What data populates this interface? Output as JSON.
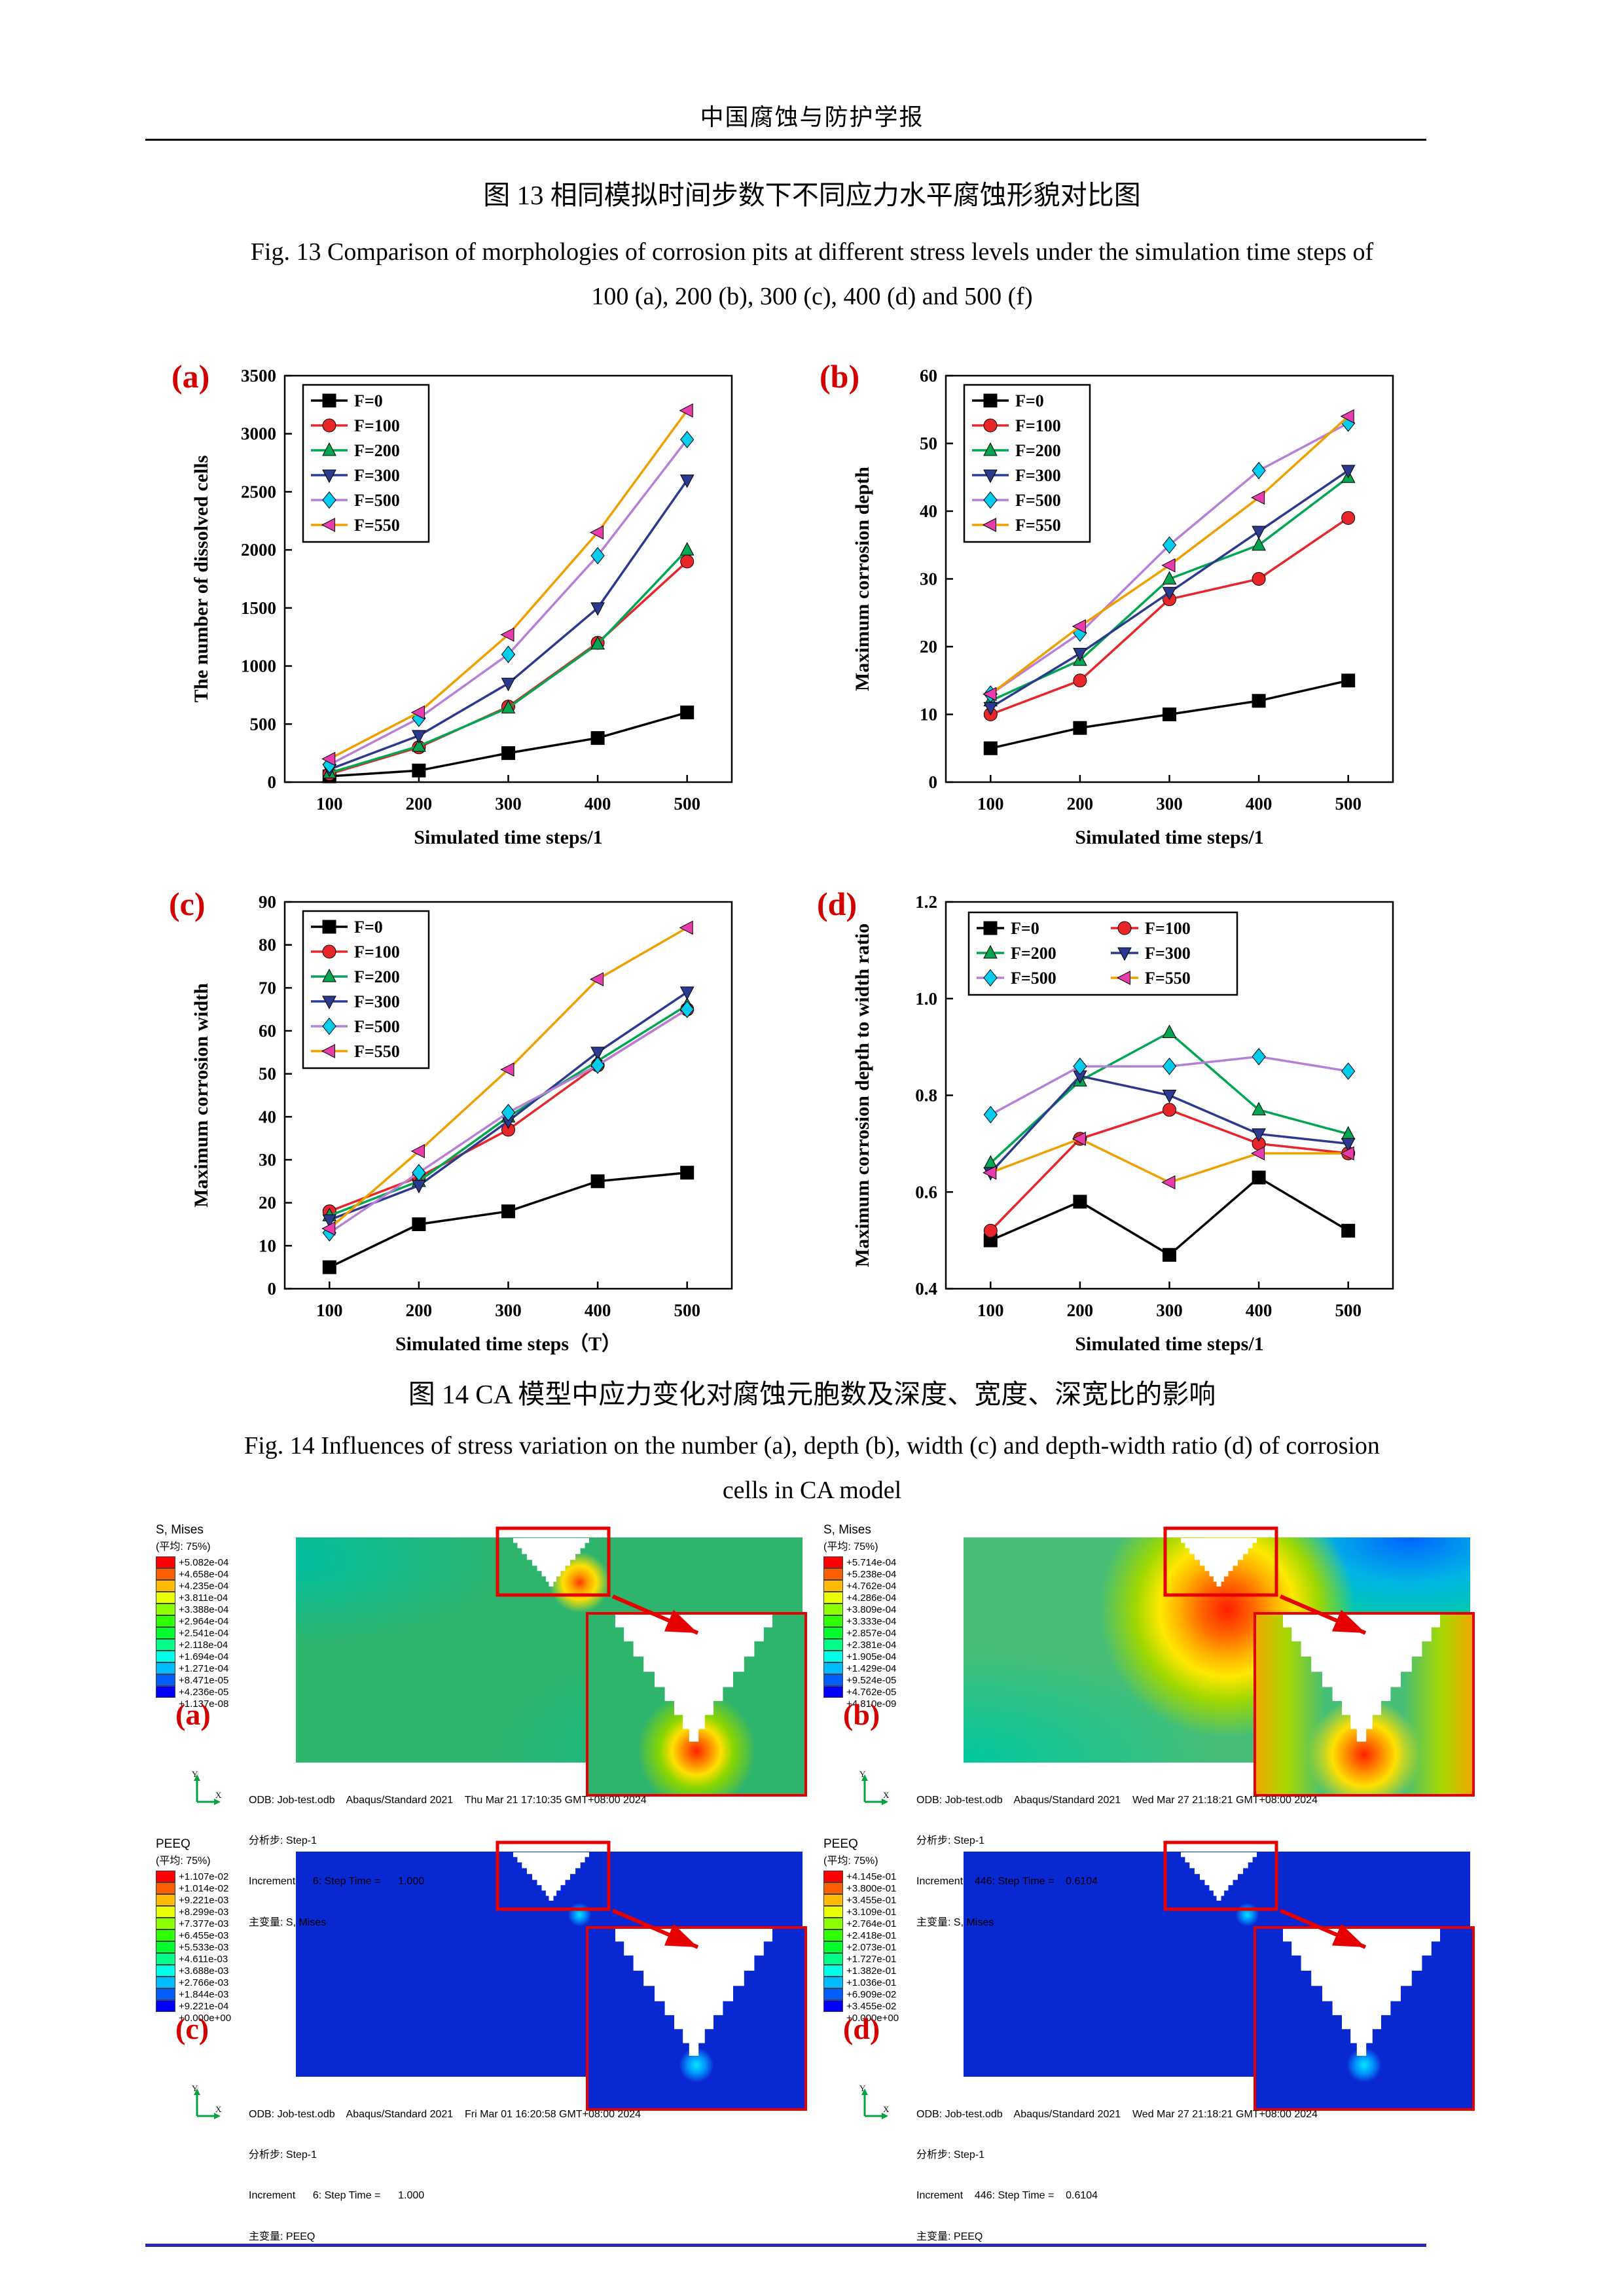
{
  "page": {
    "journal_header": "中国腐蚀与防护学报",
    "fig13_caption_zh": "图 13  相同模拟时间步数下不同应力水平腐蚀形貌对比图",
    "fig13_caption_en_line1": "Fig. 13 Comparison of morphologies of corrosion pits at different stress levels under the simulation time steps of",
    "fig13_caption_en_line2": "100 (a), 200 (b), 300 (c), 400 (d) and 500 (f)",
    "fig14_caption_zh": "图 14 CA 模型中应力变化对腐蚀元胞数及深度、宽度、深宽比的影响",
    "fig14_caption_en_line1": "Fig. 14 Influences of stress variation on the number (a), depth (b), width (c) and depth-width ratio (d) of corrosion",
    "fig14_caption_en_line2": "cells in CA model"
  },
  "chart_panel_labels": {
    "a": "(a)",
    "b": "(b)",
    "c": "(c)",
    "d": "(d)"
  },
  "chart_data": [
    {
      "id": "a",
      "type": "line",
      "title": "",
      "xlabel": "Simulated time steps/1",
      "ylabel": "The number of dissolved cells",
      "x": [
        100,
        200,
        300,
        400,
        500
      ],
      "xlim": [
        50,
        550
      ],
      "ylim": [
        0,
        3500
      ],
      "ytick_step": 500,
      "ytick_decimals": 0,
      "legend_position": "top-left",
      "legend_columns": 1,
      "series": [
        {
          "name": "F=0",
          "marker": "square",
          "color": "#000000",
          "marker_color": "#000000",
          "values": [
            50,
            100,
            250,
            380,
            600
          ]
        },
        {
          "name": "F=100",
          "marker": "circle",
          "color": "#e8262a",
          "marker_color": "#e8262a",
          "values": [
            70,
            300,
            650,
            1200,
            1900
          ]
        },
        {
          "name": "F=200",
          "marker": "triangle-up",
          "color": "#00a651",
          "marker_color": "#00a651",
          "values": [
            80,
            310,
            640,
            1190,
            2000
          ]
        },
        {
          "name": "F=300",
          "marker": "triangle-down",
          "color": "#2b3a8f",
          "marker_color": "#2b3a8f",
          "values": [
            110,
            400,
            850,
            1500,
            2600
          ]
        },
        {
          "name": "F=500",
          "marker": "diamond",
          "color": "#b77fd6",
          "marker_color": "#00cdee",
          "values": [
            150,
            550,
            1100,
            1950,
            2950
          ]
        },
        {
          "name": "F=550",
          "marker": "triangle-left",
          "color": "#efa000",
          "marker_color": "#e93cac",
          "values": [
            200,
            600,
            1270,
            2150,
            3200
          ]
        }
      ]
    },
    {
      "id": "b",
      "type": "line",
      "title": "",
      "xlabel": "Simulated time steps/1",
      "ylabel": "Maximum corrosion depth",
      "x": [
        100,
        200,
        300,
        400,
        500
      ],
      "xlim": [
        50,
        550
      ],
      "ylim": [
        0,
        60
      ],
      "ytick_step": 10,
      "ytick_decimals": 0,
      "legend_position": "top-left",
      "legend_columns": 1,
      "series": [
        {
          "name": "F=0",
          "marker": "square",
          "color": "#000000",
          "marker_color": "#000000",
          "values": [
            5,
            8,
            10,
            12,
            15
          ]
        },
        {
          "name": "F=100",
          "marker": "circle",
          "color": "#e8262a",
          "marker_color": "#e8262a",
          "values": [
            10,
            15,
            27,
            30,
            39
          ]
        },
        {
          "name": "F=200",
          "marker": "triangle-up",
          "color": "#00a651",
          "marker_color": "#00a651",
          "values": [
            12,
            18,
            30,
            35,
            45
          ]
        },
        {
          "name": "F=300",
          "marker": "triangle-down",
          "color": "#2b3a8f",
          "marker_color": "#2b3a8f",
          "values": [
            11,
            19,
            28,
            37,
            46
          ]
        },
        {
          "name": "F=500",
          "marker": "diamond",
          "color": "#b77fd6",
          "marker_color": "#00cdee",
          "values": [
            13,
            22,
            35,
            46,
            53
          ]
        },
        {
          "name": "F=550",
          "marker": "triangle-left",
          "color": "#efa000",
          "marker_color": "#e93cac",
          "values": [
            13,
            23,
            32,
            42,
            54
          ]
        }
      ]
    },
    {
      "id": "c",
      "type": "line",
      "title": "",
      "xlabel": "Simulated time steps（T）",
      "ylabel": "Maximum corrosion width",
      "x": [
        100,
        200,
        300,
        400,
        500
      ],
      "xlim": [
        50,
        550
      ],
      "ylim": [
        0,
        90
      ],
      "ytick_step": 10,
      "ytick_decimals": 0,
      "legend_position": "top-left",
      "legend_columns": 1,
      "series": [
        {
          "name": "F=0",
          "marker": "square",
          "color": "#000000",
          "marker_color": "#000000",
          "values": [
            5,
            15,
            18,
            25,
            27
          ]
        },
        {
          "name": "F=100",
          "marker": "circle",
          "color": "#e8262a",
          "marker_color": "#e8262a",
          "values": [
            18,
            26,
            37,
            52,
            65
          ]
        },
        {
          "name": "F=200",
          "marker": "triangle-up",
          "color": "#00a651",
          "marker_color": "#00a651",
          "values": [
            17,
            25,
            40,
            53,
            66
          ]
        },
        {
          "name": "F=300",
          "marker": "triangle-down",
          "color": "#2b3a8f",
          "marker_color": "#2b3a8f",
          "values": [
            16,
            24,
            39,
            55,
            69
          ]
        },
        {
          "name": "F=500",
          "marker": "diamond",
          "color": "#b77fd6",
          "marker_color": "#00cdee",
          "values": [
            13,
            27,
            41,
            52,
            65
          ]
        },
        {
          "name": "F=550",
          "marker": "triangle-left",
          "color": "#efa000",
          "marker_color": "#e93cac",
          "values": [
            14,
            32,
            51,
            72,
            84
          ]
        }
      ]
    },
    {
      "id": "d",
      "type": "line",
      "title": "",
      "xlabel": "Simulated time steps/1",
      "ylabel": "Maximum corrosion depth to width ratio",
      "x": [
        100,
        200,
        300,
        400,
        500
      ],
      "xlim": [
        50,
        550
      ],
      "ylim": [
        0.4,
        1.2
      ],
      "ytick_step": 0.2,
      "ytick_decimals": 1,
      "legend_position": "top-center",
      "legend_columns": 2,
      "series": [
        {
          "name": "F=0",
          "marker": "square",
          "color": "#000000",
          "marker_color": "#000000",
          "values": [
            0.5,
            0.58,
            0.47,
            0.63,
            0.52
          ]
        },
        {
          "name": "F=100",
          "marker": "circle",
          "color": "#e8262a",
          "marker_color": "#e8262a",
          "values": [
            0.52,
            0.71,
            0.77,
            0.7,
            0.68
          ]
        },
        {
          "name": "F=200",
          "marker": "triangle-up",
          "color": "#00a651",
          "marker_color": "#00a651",
          "values": [
            0.66,
            0.83,
            0.93,
            0.77,
            0.72
          ]
        },
        {
          "name": "F=300",
          "marker": "triangle-down",
          "color": "#2b3a8f",
          "marker_color": "#2b3a8f",
          "values": [
            0.64,
            0.84,
            0.8,
            0.72,
            0.7
          ]
        },
        {
          "name": "F=500",
          "marker": "diamond",
          "color": "#b77fd6",
          "marker_color": "#00cdee",
          "values": [
            0.76,
            0.86,
            0.86,
            0.88,
            0.85
          ]
        },
        {
          "name": "F=550",
          "marker": "triangle-left",
          "color": "#efa000",
          "marker_color": "#e93cac",
          "values": [
            0.64,
            0.71,
            0.62,
            0.68,
            0.68
          ]
        }
      ]
    }
  ],
  "abaqus": {
    "spectrum_colors": [
      "#ff0000",
      "#ff5e00",
      "#ffbb00",
      "#eaff00",
      "#8cff00",
      "#2fff00",
      "#00ff2e",
      "#00ff88",
      "#00ffe6",
      "#00bbff",
      "#005eff",
      "#0000ff"
    ],
    "panels": [
      {
        "label": "(a)",
        "legend_title": "S, Mises",
        "legend_subtitle": "(平均: 75%)",
        "legend_values": [
          "+5.082e-04",
          "+4.658e-04",
          "+4.235e-04",
          "+3.811e-04",
          "+3.388e-04",
          "+2.964e-04",
          "+2.541e-04",
          "+2.118e-04",
          "+1.694e-04",
          "+1.271e-04",
          "+8.471e-05",
          "+4.236e-05",
          "+1.137e-08"
        ],
        "odb_line": "ODB: Job-test.odb    Abaqus/Standard 2021    Thu Mar 21 17:10:35 GMT+08:00 2024",
        "step_line": "分析步: Step-1",
        "increment_line": "Increment      6: Step Time =      1.000",
        "primary_var_line": "主变量: S, Mises"
      },
      {
        "label": "(b)",
        "legend_title": "S, Mises",
        "legend_subtitle": "(平均: 75%)",
        "legend_values": [
          "+5.714e-04",
          "+5.238e-04",
          "+4.762e-04",
          "+4.286e-04",
          "+3.809e-04",
          "+3.333e-04",
          "+2.857e-04",
          "+2.381e-04",
          "+1.905e-04",
          "+1.429e-04",
          "+9.524e-05",
          "+4.762e-05",
          "+4.810e-09"
        ],
        "odb_line": "ODB: Job-test.odb    Abaqus/Standard 2021    Wed Mar 27 21:18:21 GMT+08:00 2024",
        "step_line": "分析步: Step-1",
        "increment_line": "Increment    446: Step Time =    0.6104",
        "primary_var_line": "主变量: S, Mises"
      },
      {
        "label": "(c)",
        "legend_title": "PEEQ",
        "legend_subtitle": "(平均: 75%)",
        "legend_values": [
          "+1.107e-02",
          "+1.014e-02",
          "+9.221e-03",
          "+8.299e-03",
          "+7.377e-03",
          "+6.455e-03",
          "+5.533e-03",
          "+4.611e-03",
          "+3.688e-03",
          "+2.766e-03",
          "+1.844e-03",
          "+9.221e-04",
          "+0.000e+00"
        ],
        "odb_line": "ODB: Job-test.odb    Abaqus/Standard 2021    Fri Mar 01 16:20:58 GMT+08:00 2024",
        "step_line": "分析步: Step-1",
        "increment_line": "Increment      6: Step Time =      1.000",
        "primary_var_line": "主变量: PEEQ"
      },
      {
        "label": "(d)",
        "legend_title": "PEEQ",
        "legend_subtitle": "(平均: 75%)",
        "legend_values": [
          "+4.145e-01",
          "+3.800e-01",
          "+3.455e-01",
          "+3.109e-01",
          "+2.764e-01",
          "+2.418e-01",
          "+2.073e-01",
          "+1.727e-01",
          "+1.382e-01",
          "+1.036e-01",
          "+6.909e-02",
          "+3.455e-02",
          "+0.000e+00"
        ],
        "odb_line": "ODB: Job-test.odb    Abaqus/Standard 2021    Wed Mar 27 21:18:21 GMT+08:00 2024",
        "step_line": "分析步: Step-1",
        "increment_line": "Increment    446: Step Time =    0.6104",
        "primary_var_line": "主变量: PEEQ"
      }
    ]
  }
}
